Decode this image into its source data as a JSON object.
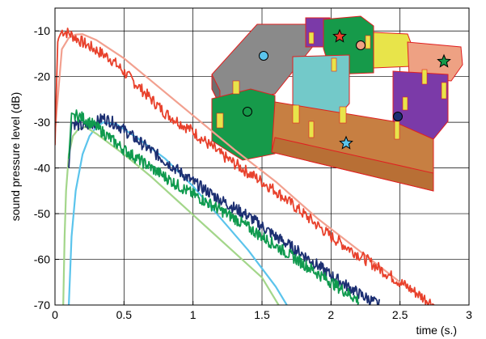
{
  "chart_data": {
    "type": "line",
    "xlabel": "time (s.)",
    "ylabel": "sound pressure level (dB)",
    "xlim": [
      0,
      3
    ],
    "ylim": [
      -70,
      -5
    ],
    "xticks": [
      0,
      0.5,
      1,
      1.5,
      2,
      2.5,
      3
    ],
    "xtick_labels": [
      "0",
      "0.5",
      "1",
      "1.5",
      "2",
      "2.5",
      "3"
    ],
    "yticks": [
      -70,
      -60,
      -50,
      -40,
      -30,
      -20,
      -10
    ],
    "ytick_labels": [
      "-70",
      "-60",
      "-50",
      "-40",
      "-30",
      "-20",
      "-10"
    ],
    "grid": true,
    "series": [
      {
        "color": "#e8412c",
        "noisy": true,
        "x": [
          0.0,
          0.02,
          0.05,
          0.1,
          0.2,
          0.4,
          0.6,
          0.8,
          1.0,
          1.2,
          1.4,
          1.6,
          1.8,
          2.0,
          2.2,
          2.4,
          2.6,
          2.75
        ],
        "y": [
          -35,
          -12,
          -10,
          -10.5,
          -12.5,
          -16,
          -22,
          -28,
          -32,
          -37,
          -41,
          -45,
          -50,
          -55,
          -59,
          -63,
          -67,
          -70
        ]
      },
      {
        "color": "#f2a08f",
        "noisy": false,
        "x": [
          0.0,
          0.05,
          0.1,
          0.15,
          0.2,
          0.3,
          0.5,
          0.7,
          1.0,
          1.3,
          1.6,
          1.9,
          2.2,
          2.5,
          2.65
        ],
        "y": [
          -32,
          -14,
          -11.5,
          -10.8,
          -10.7,
          -12,
          -16,
          -21,
          -28.5,
          -36,
          -43,
          -51,
          -58,
          -65,
          -68
        ]
      },
      {
        "color": "#1c2f72",
        "noisy": true,
        "x": [
          0.1,
          0.12,
          0.2,
          0.3,
          0.35,
          0.45,
          0.6,
          0.8,
          1.0,
          1.2,
          1.4,
          1.6,
          1.8,
          2.0,
          2.2,
          2.35
        ],
        "y": [
          -40,
          -30,
          -31,
          -30,
          -29,
          -30.5,
          -34,
          -38.5,
          -43,
          -47,
          -50.5,
          -55,
          -59,
          -63.5,
          -67.5,
          -70
        ]
      },
      {
        "color": "#5bc4ec",
        "noisy": false,
        "x": [
          0.1,
          0.12,
          0.15,
          0.2,
          0.25,
          0.3,
          0.35,
          0.45,
          0.6,
          0.8,
          1.0,
          1.2,
          1.4,
          1.6,
          1.68
        ],
        "y": [
          -70,
          -55,
          -45,
          -37,
          -33,
          -31,
          -30,
          -30.5,
          -33.5,
          -38,
          -44,
          -51,
          -58,
          -66,
          -70
        ]
      },
      {
        "color": "#0f9a4e",
        "noisy": true,
        "x": [
          0.1,
          0.12,
          0.2,
          0.3,
          0.5,
          0.7,
          0.9,
          1.1,
          1.3,
          1.5,
          1.7,
          1.9,
          2.1,
          2.2
        ],
        "y": [
          -38,
          -28,
          -29,
          -31,
          -36,
          -40,
          -44,
          -47.5,
          -51,
          -55,
          -59,
          -63,
          -67,
          -69
        ]
      },
      {
        "color": "#a3d68a",
        "noisy": false,
        "x": [
          0.06,
          0.07,
          0.08,
          0.1,
          0.13,
          0.17,
          0.22,
          0.3,
          0.5,
          0.7,
          0.9,
          1.1,
          1.3,
          1.5,
          1.62
        ],
        "y": [
          -70,
          -55,
          -45,
          -37,
          -33,
          -31.5,
          -31,
          -32.5,
          -37,
          -42,
          -47.5,
          -53,
          -58.5,
          -64,
          -70
        ]
      }
    ]
  },
  "inset": {
    "colors": {
      "grey": "#8a8a8a",
      "purple": "#7b3aa8",
      "green": "#169a4a",
      "yellow": "#e8e44a",
      "salmon": "#eea183",
      "teal": "#73c9c9",
      "brown": "#c77f42",
      "outline": "#e02020"
    }
  }
}
